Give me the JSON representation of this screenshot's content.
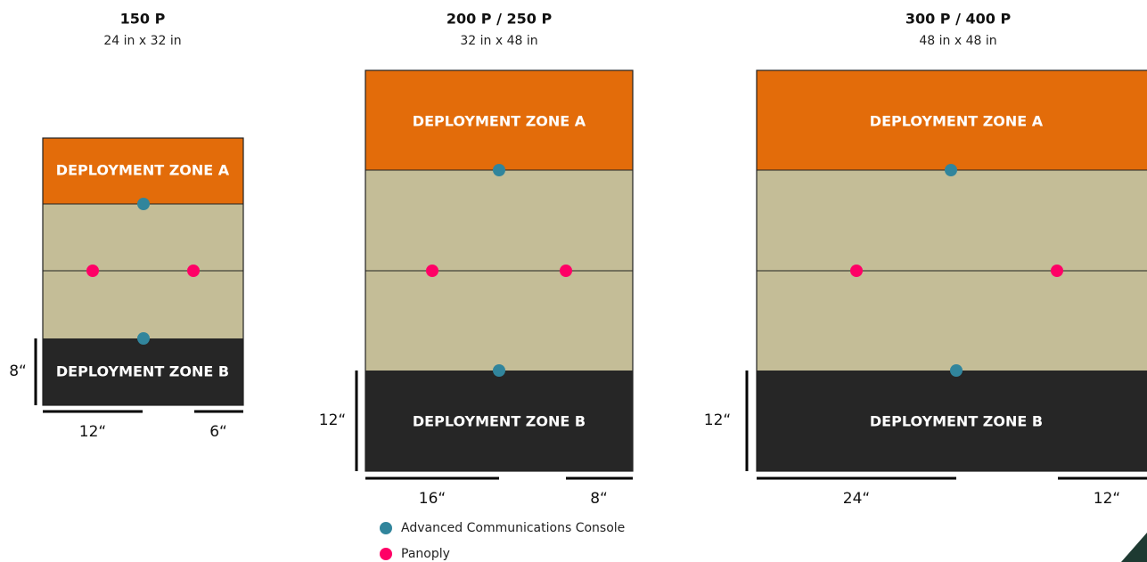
{
  "maps": [
    {
      "title": "150 P",
      "size": "24 in x 32 in",
      "zone_a": "DEPLOYMENT ZONE A",
      "zone_b": "DEPLOYMENT ZONE B",
      "depth": "8“",
      "width_left": "12“",
      "width_right": "6“"
    },
    {
      "title": "200 P / 250 P",
      "size": "32 in x 48 in",
      "zone_a": "DEPLOYMENT ZONE A",
      "zone_b": "DEPLOYMENT ZONE B",
      "depth": "12“",
      "width_left": "16“",
      "width_right": "8“"
    },
    {
      "title": "300 P / 400 P",
      "size": "48 in x 48 in",
      "zone_a": "DEPLOYMENT ZONE A",
      "zone_b": "DEPLOYMENT ZONE B",
      "depth": "12“",
      "width_left": "24“",
      "width_right": "12“"
    }
  ],
  "legend": [
    "Advanced Communications Console",
    "Panoply"
  ]
}
